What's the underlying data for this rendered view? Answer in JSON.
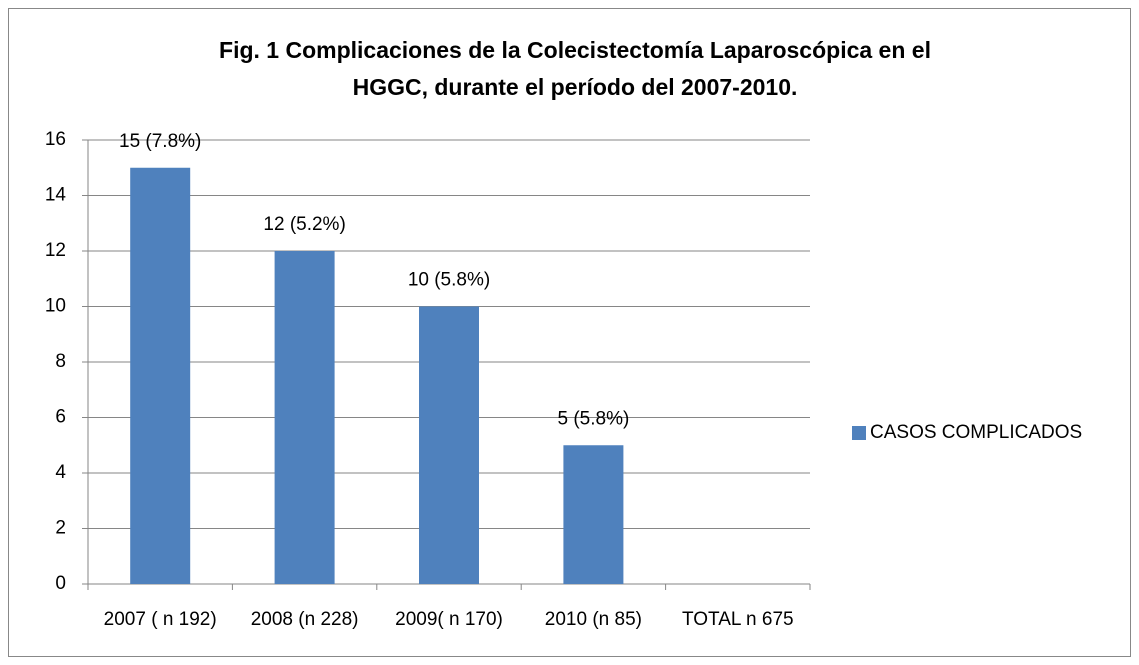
{
  "chart_data": {
    "type": "bar",
    "title": [
      "Fig. 1 Complicaciones de la Colecistectomía Laparoscópica en el",
      "HGGC, durante el período del 2007-2010."
    ],
    "categories": [
      "2007 ( n 192)",
      "2008 (n 228)",
      "2009( n 170)",
      "2010 (n 85)",
      "TOTAL n 675"
    ],
    "series": [
      {
        "name": "CASOS COMPLICADOS",
        "color": "#4f81bd",
        "values": [
          15,
          12,
          10,
          5,
          null
        ],
        "value_labels": [
          "15  (7.8%)",
          "12  (5.2%)",
          "10  (5.8%)",
          "5 (5.8%)",
          null
        ]
      }
    ],
    "ylim": [
      0,
      16
    ],
    "yticks": [
      0,
      2,
      4,
      6,
      8,
      10,
      12,
      14,
      16
    ],
    "grid": true,
    "legend": "right"
  }
}
